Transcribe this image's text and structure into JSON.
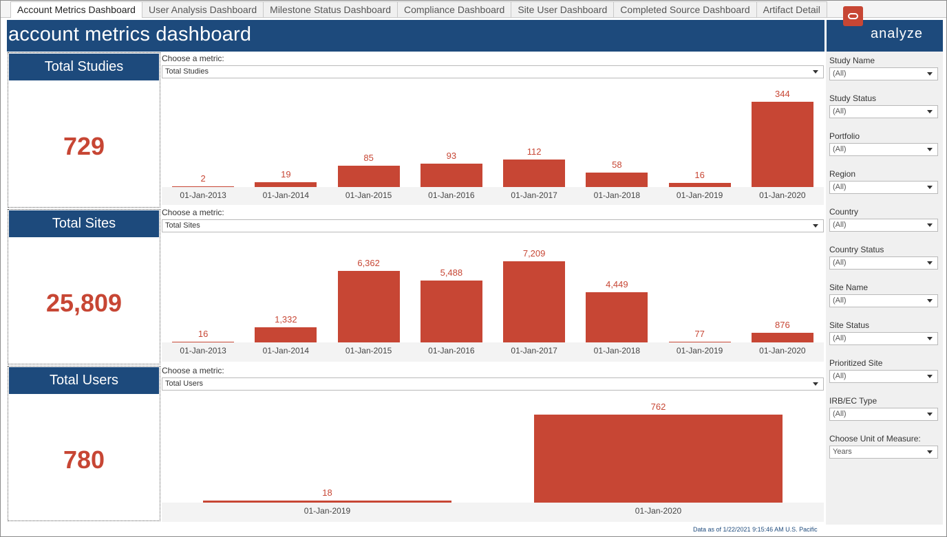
{
  "tabs": [
    {
      "label": "Account Metrics Dashboard",
      "active": true
    },
    {
      "label": "User Analysis Dashboard"
    },
    {
      "label": "Milestone Status Dashboard"
    },
    {
      "label": "Compliance Dashboard"
    },
    {
      "label": "Site User Dashboard"
    },
    {
      "label": "Completed Source Dashboard"
    },
    {
      "label": "Artifact Detail"
    }
  ],
  "header": {
    "title": "account metrics dashboard",
    "logo_text": "analyze",
    "logo_icon": "oracle-ring-icon",
    "bg_color": "#1d4a7c",
    "accent_color": "#c74634"
  },
  "kpis": [
    {
      "label": "Total Studies",
      "value": "729"
    },
    {
      "label": "Total Sites",
      "value": "25,809"
    },
    {
      "label": "Total Users",
      "value": "780"
    }
  ],
  "metric_selectors": [
    {
      "label": "Choose a metric:",
      "value": "Total Studies"
    },
    {
      "label": "Choose a metric:",
      "value": "Total Sites"
    },
    {
      "label": "Choose a metric:",
      "value": "Total Users"
    }
  ],
  "chart_data": [
    {
      "type": "bar",
      "categories": [
        "01-Jan-2013",
        "01-Jan-2014",
        "01-Jan-2015",
        "01-Jan-2016",
        "01-Jan-2017",
        "01-Jan-2018",
        "01-Jan-2019",
        "01-Jan-2020"
      ],
      "values": [
        2,
        19,
        85,
        93,
        112,
        58,
        16,
        344
      ],
      "value_labels": [
        "2",
        "19",
        "85",
        "93",
        "112",
        "58",
        "16",
        "344"
      ],
      "ylim": [
        0,
        344
      ],
      "grid": false,
      "bar_color": "#c74634"
    },
    {
      "type": "bar",
      "categories": [
        "01-Jan-2013",
        "01-Jan-2014",
        "01-Jan-2015",
        "01-Jan-2016",
        "01-Jan-2017",
        "01-Jan-2018",
        "01-Jan-2019",
        "01-Jan-2020"
      ],
      "values": [
        16,
        1332,
        6362,
        5488,
        7209,
        4449,
        77,
        876
      ],
      "value_labels": [
        "16",
        "1,332",
        "6,362",
        "5,488",
        "7,209",
        "4,449",
        "77",
        "876"
      ],
      "ylim": [
        0,
        7209
      ],
      "grid": false,
      "bar_color": "#c74634"
    },
    {
      "type": "bar",
      "categories": [
        "01-Jan-2019",
        "01-Jan-2020"
      ],
      "values": [
        18,
        762
      ],
      "value_labels": [
        "18",
        "762"
      ],
      "ylim": [
        0,
        762
      ],
      "grid": false,
      "bar_color": "#c74634"
    }
  ],
  "filters": [
    {
      "label": "Study Name",
      "value": "(All)"
    },
    {
      "label": "Study Status",
      "value": "(All)"
    },
    {
      "label": "Portfolio",
      "value": "(All)"
    },
    {
      "label": "Region",
      "value": "(All)"
    },
    {
      "label": "Country",
      "value": "(All)"
    },
    {
      "label": "Country Status",
      "value": "(All)"
    },
    {
      "label": "Site Name",
      "value": "(All)"
    },
    {
      "label": "Site Status",
      "value": "(All)"
    },
    {
      "label": "Prioritized Site",
      "value": "(All)"
    },
    {
      "label": "IRB/EC Type",
      "value": "(All)"
    },
    {
      "label": "Choose Unit of Measure:",
      "value": "Years"
    }
  ],
  "footer": {
    "text": "Data as of 1/22/2021 9:15:46 AM U.S. Pacific"
  }
}
